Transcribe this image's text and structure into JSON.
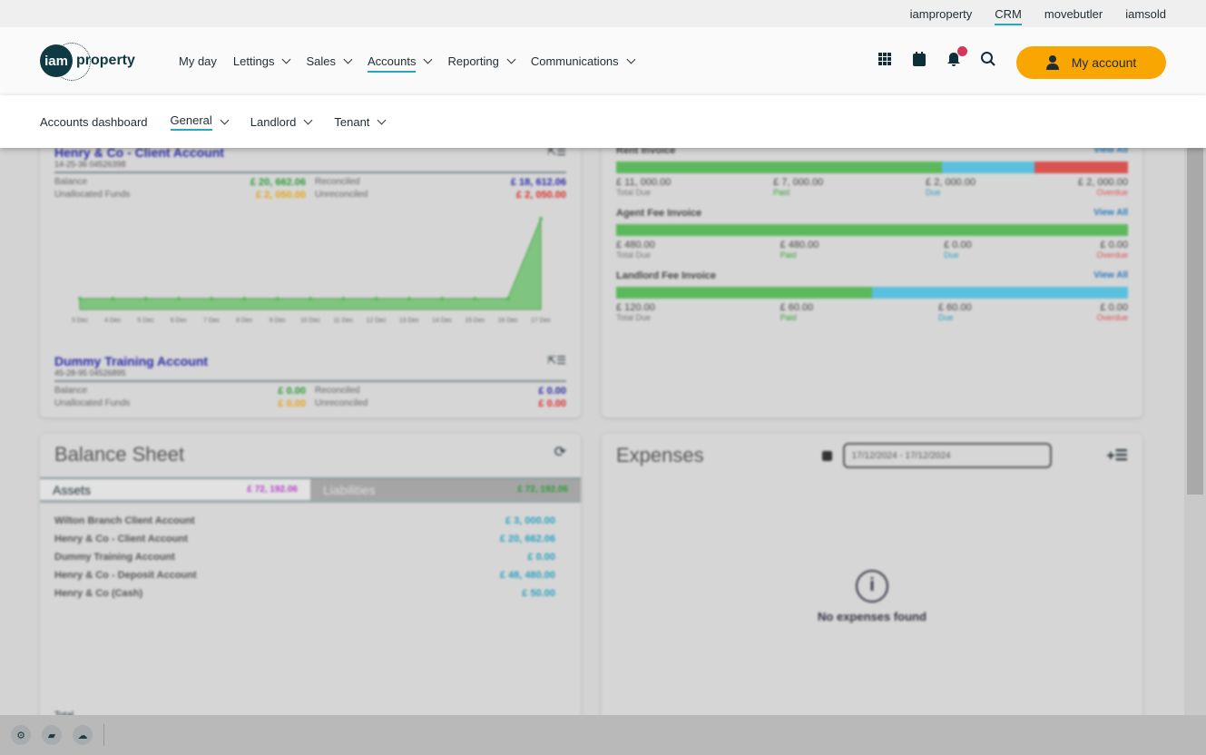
{
  "topbar": {
    "links": [
      "iamproperty",
      "CRM",
      "movebutler",
      "iamsold"
    ],
    "active": "CRM"
  },
  "logo": {
    "mark": "iam",
    "word": "property"
  },
  "nav": {
    "items": [
      {
        "label": "My day"
      },
      {
        "label": "Lettings"
      },
      {
        "label": "Sales"
      },
      {
        "label": "Accounts"
      },
      {
        "label": "Reporting"
      },
      {
        "label": "Communications"
      }
    ],
    "account_label": "My account"
  },
  "subnav": {
    "items": [
      {
        "label": "Accounts dashboard"
      },
      {
        "label": "General"
      },
      {
        "label": "Landlord"
      },
      {
        "label": "Tenant"
      }
    ]
  },
  "accounts": [
    {
      "name": "Henry & Co - Client Account",
      "sort_code": "14-25-36  04526398",
      "balance_label": "Balance",
      "balance": "£ 20, 662.06",
      "reconciled_label": "Reconciled",
      "reconciled": "£ 18, 612.06",
      "unallocated_label": "Unallocated Funds",
      "unallocated": "£ 2, 050.00",
      "unreconciled_label": "Unreconciled",
      "unreconciled": "£ 2, 050.00"
    },
    {
      "name": "Dummy Training Account",
      "sort_code": "45-28-95  04526895",
      "balance_label": "Balance",
      "balance": "£ 0.00",
      "reconciled_label": "Reconciled",
      "reconciled": "£ 0.00",
      "unallocated_label": "Unallocated Funds",
      "unallocated": "£ 0.00",
      "unreconciled_label": "Unreconciled",
      "unreconciled": "£ 0.00"
    }
  ],
  "balance_chart": {
    "x": [
      "3 Dec",
      "4 Dec",
      "5 Dec",
      "6 Dec",
      "7 Dec",
      "8 Dec",
      "9 Dec",
      "10 Dec",
      "11 Dec",
      "12 Dec",
      "13 Dec",
      "14 Dec",
      "15 Dec",
      "16 Dec",
      "17 Dec"
    ],
    "y": [
      0,
      0,
      0,
      0,
      0,
      0,
      0,
      0,
      0,
      0,
      0,
      0,
      0,
      0,
      20662.06
    ]
  },
  "invoices": [
    {
      "title": "Rent Invoice",
      "view_all": "View All",
      "total": "£ 11, 000.00",
      "paid": "£ 7, 000.00",
      "due": "£ 2, 000.00",
      "overdue": "£ 2, 000.00",
      "fractions": [
        0.636,
        0.182,
        0.182
      ]
    },
    {
      "title": "Agent Fee Invoice",
      "view_all": "View All",
      "total": "£ 480.00",
      "paid": "£ 480.00",
      "due": "£ 0.00",
      "overdue": "£ 0.00",
      "fractions": [
        1,
        0,
        0
      ]
    },
    {
      "title": "Landlord Fee Invoice",
      "view_all": "View All",
      "total": "£ 120.00",
      "paid": "£ 60.00",
      "due": "£ 60.00",
      "overdue": "£ 0.00",
      "fractions": [
        0.5,
        0.5,
        0
      ]
    }
  ],
  "invoice_labels": {
    "total": "Total Due",
    "paid": "Paid",
    "due": "Due",
    "overdue": "Overdue"
  },
  "balance_sheet": {
    "title": "Balance Sheet",
    "assets_label": "Assets",
    "assets_total": "£ 72, 192.06",
    "liabilities_label": "Liabilities",
    "liabilities_total": "£ 72, 192.06",
    "rows": [
      {
        "name": "Wilton Branch Client Account",
        "value": "£ 3, 000.00"
      },
      {
        "name": "Henry & Co - Client Account",
        "value": "£ 20, 662.06"
      },
      {
        "name": "Dummy Training Account",
        "value": "£ 0.00"
      },
      {
        "name": "Henry & Co - Deposit Account",
        "value": "£ 48, 480.00"
      },
      {
        "name": "Henry & Co (Cash)",
        "value": "£ 50.00"
      }
    ],
    "total_label": "Total"
  },
  "expenses": {
    "title": "Expenses",
    "date_range": "17/12/2024 - 17/12/2024",
    "empty": "No expenses found"
  },
  "colors": {
    "accent": "#2ba6b8",
    "account_button": "#f9a602",
    "paid": "#5cb85c",
    "due": "#5bc0de",
    "overdue": "#d9534f"
  }
}
